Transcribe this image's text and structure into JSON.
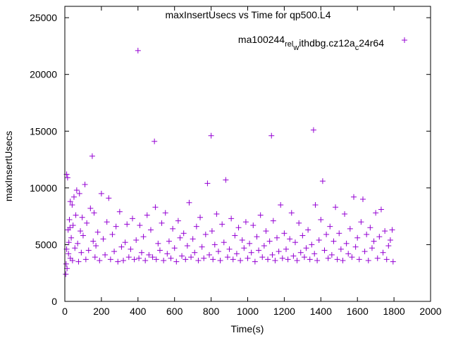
{
  "chart_data": {
    "type": "scatter",
    "title": "maxInsertUsecs vs Time for qp500.L4",
    "xlabel": "Time(s)",
    "ylabel": "maxInsertUsecs",
    "xlim": [
      0,
      2000
    ],
    "ylim": [
      0,
      26000
    ],
    "x_ticks": [
      0,
      200,
      400,
      600,
      800,
      1000,
      1200,
      1400,
      1600,
      1800,
      2000
    ],
    "y_ticks": [
      0,
      5000,
      10000,
      15000,
      20000,
      25000
    ],
    "grid": false,
    "legend_position": "top-right",
    "series": [
      {
        "name": "ma100244_rel_withdbg.cz12a_c24r64",
        "legend_label": {
          "base": "ma100244",
          "sub1": "rel",
          "mid1": "",
          "sub2": "w",
          "mid2": "ithdbg.cz12a",
          "sub3": "c",
          "tail": "24r64"
        },
        "color": "#9400d3",
        "marker": "plus",
        "points": [
          [
            5,
            2400
          ],
          [
            7,
            3300
          ],
          [
            10,
            4600
          ],
          [
            10,
            11200
          ],
          [
            12,
            2900
          ],
          [
            15,
            10900
          ],
          [
            18,
            6300
          ],
          [
            20,
            4200
          ],
          [
            22,
            5200
          ],
          [
            25,
            7200
          ],
          [
            28,
            6500
          ],
          [
            30,
            3800
          ],
          [
            30,
            8800
          ],
          [
            35,
            5600
          ],
          [
            40,
            8500
          ],
          [
            42,
            3600
          ],
          [
            45,
            6700
          ],
          [
            50,
            9200
          ],
          [
            55,
            4700
          ],
          [
            60,
            7600
          ],
          [
            65,
            9800
          ],
          [
            70,
            5100
          ],
          [
            75,
            3500
          ],
          [
            80,
            9500
          ],
          [
            85,
            6200
          ],
          [
            90,
            4300
          ],
          [
            95,
            7400
          ],
          [
            100,
            5800
          ],
          [
            110,
            10300
          ],
          [
            115,
            3700
          ],
          [
            120,
            6900
          ],
          [
            130,
            4500
          ],
          [
            140,
            8200
          ],
          [
            150,
            12800
          ],
          [
            155,
            5300
          ],
          [
            160,
            7800
          ],
          [
            165,
            3900
          ],
          [
            170,
            4900
          ],
          [
            180,
            6100
          ],
          [
            190,
            3600
          ],
          [
            200,
            9500
          ],
          [
            210,
            5500
          ],
          [
            220,
            4100
          ],
          [
            230,
            7000
          ],
          [
            240,
            9100
          ],
          [
            250,
            3700
          ],
          [
            260,
            5900
          ],
          [
            270,
            4400
          ],
          [
            280,
            6600
          ],
          [
            290,
            3500
          ],
          [
            300,
            7900
          ],
          [
            310,
            4800
          ],
          [
            320,
            3600
          ],
          [
            330,
            5200
          ],
          [
            340,
            6800
          ],
          [
            350,
            3900
          ],
          [
            360,
            4600
          ],
          [
            370,
            7300
          ],
          [
            380,
            3700
          ],
          [
            390,
            5400
          ],
          [
            400,
            22100
          ],
          [
            405,
            3800
          ],
          [
            410,
            6700
          ],
          [
            420,
            4300
          ],
          [
            430,
            5700
          ],
          [
            440,
            3600
          ],
          [
            450,
            7600
          ],
          [
            460,
            4100
          ],
          [
            470,
            6300
          ],
          [
            480,
            3900
          ],
          [
            490,
            14100
          ],
          [
            495,
            8300
          ],
          [
            500,
            3700
          ],
          [
            510,
            5100
          ],
          [
            520,
            4500
          ],
          [
            530,
            6900
          ],
          [
            540,
            3600
          ],
          [
            550,
            7800
          ],
          [
            560,
            4200
          ],
          [
            570,
            5300
          ],
          [
            580,
            3800
          ],
          [
            590,
            6400
          ],
          [
            600,
            4700
          ],
          [
            610,
            3500
          ],
          [
            620,
            7100
          ],
          [
            630,
            5600
          ],
          [
            640,
            4000
          ],
          [
            650,
            6000
          ],
          [
            660,
            3700
          ],
          [
            670,
            4900
          ],
          [
            680,
            8700
          ],
          [
            690,
            3900
          ],
          [
            700,
            5500
          ],
          [
            710,
            4300
          ],
          [
            720,
            6600
          ],
          [
            730,
            3600
          ],
          [
            740,
            7400
          ],
          [
            750,
            4800
          ],
          [
            760,
            3800
          ],
          [
            770,
            5900
          ],
          [
            780,
            10400
          ],
          [
            790,
            4100
          ],
          [
            800,
            14600
          ],
          [
            805,
            6200
          ],
          [
            810,
            3700
          ],
          [
            820,
            5000
          ],
          [
            830,
            7700
          ],
          [
            840,
            4400
          ],
          [
            850,
            3600
          ],
          [
            860,
            6800
          ],
          [
            870,
            5200
          ],
          [
            880,
            10700
          ],
          [
            890,
            3900
          ],
          [
            900,
            4600
          ],
          [
            910,
            7300
          ],
          [
            920,
            3700
          ],
          [
            930,
            5800
          ],
          [
            940,
            4200
          ],
          [
            950,
            6500
          ],
          [
            960,
            3600
          ],
          [
            970,
            5400
          ],
          [
            980,
            4700
          ],
          [
            990,
            7000
          ],
          [
            1000,
            3800
          ],
          [
            1010,
            5100
          ],
          [
            1020,
            4300
          ],
          [
            1030,
            6700
          ],
          [
            1040,
            3500
          ],
          [
            1050,
            5700
          ],
          [
            1060,
            4500
          ],
          [
            1070,
            7600
          ],
          [
            1080,
            3900
          ],
          [
            1090,
            4900
          ],
          [
            1100,
            6200
          ],
          [
            1110,
            3700
          ],
          [
            1120,
            5300
          ],
          [
            1130,
            14600
          ],
          [
            1135,
            4100
          ],
          [
            1140,
            7100
          ],
          [
            1150,
            3600
          ],
          [
            1160,
            5600
          ],
          [
            1170,
            4400
          ],
          [
            1180,
            8500
          ],
          [
            1190,
            3800
          ],
          [
            1200,
            6000
          ],
          [
            1210,
            4600
          ],
          [
            1220,
            3700
          ],
          [
            1230,
            5500
          ],
          [
            1240,
            7800
          ],
          [
            1250,
            4000
          ],
          [
            1260,
            5200
          ],
          [
            1270,
            3600
          ],
          [
            1280,
            6900
          ],
          [
            1290,
            4300
          ],
          [
            1300,
            5800
          ],
          [
            1310,
            3900
          ],
          [
            1320,
            4700
          ],
          [
            1330,
            6300
          ],
          [
            1340,
            3700
          ],
          [
            1350,
            5000
          ],
          [
            1360,
            15100
          ],
          [
            1365,
            4200
          ],
          [
            1370,
            8500
          ],
          [
            1380,
            3600
          ],
          [
            1390,
            5400
          ],
          [
            1400,
            7200
          ],
          [
            1410,
            10600
          ],
          [
            1420,
            4500
          ],
          [
            1430,
            5900
          ],
          [
            1440,
            3800
          ],
          [
            1450,
            6600
          ],
          [
            1460,
            4100
          ],
          [
            1470,
            5300
          ],
          [
            1480,
            8300
          ],
          [
            1490,
            3700
          ],
          [
            1500,
            6000
          ],
          [
            1510,
            4600
          ],
          [
            1520,
            3600
          ],
          [
            1530,
            7700
          ],
          [
            1540,
            5100
          ],
          [
            1550,
            4200
          ],
          [
            1560,
            6400
          ],
          [
            1570,
            3900
          ],
          [
            1580,
            9200
          ],
          [
            1590,
            4800
          ],
          [
            1600,
            5600
          ],
          [
            1610,
            3700
          ],
          [
            1620,
            7000
          ],
          [
            1630,
            9000
          ],
          [
            1640,
            4400
          ],
          [
            1650,
            5900
          ],
          [
            1660,
            3600
          ],
          [
            1670,
            6500
          ],
          [
            1680,
            4700
          ],
          [
            1690,
            5300
          ],
          [
            1700,
            7800
          ],
          [
            1710,
            3800
          ],
          [
            1720,
            5700
          ],
          [
            1730,
            8100
          ],
          [
            1740,
            4300
          ],
          [
            1750,
            6200
          ],
          [
            1760,
            3700
          ],
          [
            1770,
            4900
          ],
          [
            1780,
            5400
          ],
          [
            1790,
            6300
          ],
          [
            1795,
            3500
          ]
        ]
      }
    ]
  }
}
